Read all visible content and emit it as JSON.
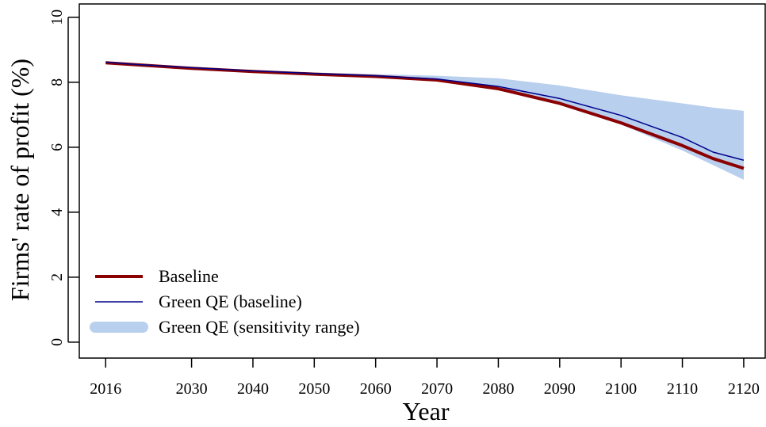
{
  "chart_data": {
    "type": "line",
    "x_label": "Year",
    "y_label": "Firms' rate of profit (%)",
    "x": [
      2016,
      2020,
      2030,
      2040,
      2050,
      2060,
      2070,
      2080,
      2090,
      2100,
      2110,
      2115,
      2120
    ],
    "series": [
      {
        "name": "Green QE (sensitivity range)",
        "color": "#b9cfee",
        "kind": "band",
        "values": [
          8.62,
          8.57,
          8.46,
          8.37,
          8.3,
          8.25,
          8.2,
          8.12,
          7.9,
          7.6,
          7.35,
          7.22,
          7.12
        ],
        "lower": [
          8.6,
          8.54,
          8.42,
          8.32,
          8.24,
          8.17,
          8.05,
          7.76,
          7.3,
          6.7,
          5.9,
          5.45,
          5.0
        ]
      },
      {
        "name": "Baseline",
        "color": "#8b0000",
        "width": 4,
        "values": [
          8.6,
          8.55,
          8.43,
          8.33,
          8.25,
          8.18,
          8.07,
          7.8,
          7.35,
          6.75,
          6.05,
          5.65,
          5.35
        ]
      },
      {
        "name": "Green QE (baseline)",
        "color": "#00008b",
        "width": 1.5,
        "values": [
          8.62,
          8.56,
          8.45,
          8.35,
          8.27,
          8.2,
          8.1,
          7.87,
          7.5,
          6.98,
          6.3,
          5.85,
          5.6
        ]
      }
    ],
    "legend_order": [
      1,
      2,
      0
    ],
    "legend": "bottom-left",
    "xlim": [
      2011.7,
      2123.5
    ],
    "ylim": [
      -0.49,
      10.41
    ],
    "xticks": [
      2016,
      2030,
      2040,
      2050,
      2060,
      2070,
      2080,
      2090,
      2100,
      2110,
      2120
    ],
    "yticks": [
      0,
      2,
      4,
      6,
      8,
      10
    ]
  }
}
